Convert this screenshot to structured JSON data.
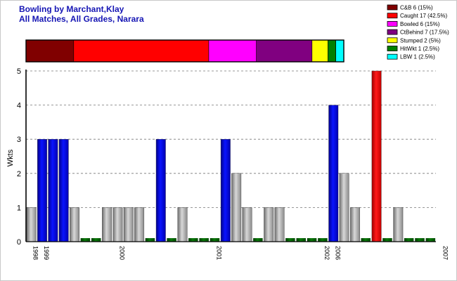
{
  "title_line1": "Bowling by Marchant,Klay",
  "title_line2": "All Matches, All Grades, Narara",
  "dismissals": [
    {
      "label": "C&B 6 (15%)",
      "count": 6,
      "color": "#800000"
    },
    {
      "label": "Caught 17 (42.5%)",
      "count": 17,
      "color": "#ff0000"
    },
    {
      "label": "Bowled 6 (15%)",
      "count": 6,
      "color": "#ff00ff"
    },
    {
      "label": "CtBehind 7 (17.5%)",
      "count": 7,
      "color": "#800080"
    },
    {
      "label": "Stumped 2 (5%)",
      "count": 2,
      "color": "#ffff00"
    },
    {
      "label": "HitWkt 1 (2.5%)",
      "count": 1,
      "color": "#008000"
    },
    {
      "label": "LBW 1 (2.5%)",
      "count": 1,
      "color": "#00ffff"
    }
  ],
  "chart_data": {
    "type": "bar",
    "title": "Bowling by Marchant,Klay",
    "subtitle": "All Matches, All Grades, Narara",
    "ylabel": "Wkts",
    "ylim": [
      0,
      5
    ],
    "yticks": [
      "0",
      "1",
      "2",
      "3",
      "4",
      "5"
    ],
    "grid": true,
    "legend": "top-right",
    "xtick_labels": [
      {
        "index": 0,
        "text": "1998"
      },
      {
        "index": 1,
        "text": "1999"
      },
      {
        "index": 8,
        "text": "2000"
      },
      {
        "index": 17,
        "text": "2001"
      },
      {
        "index": 27,
        "text": "2002"
      },
      {
        "index": 28,
        "text": "2006"
      },
      {
        "index": 38,
        "text": "2007"
      }
    ],
    "series_colors": {
      "grey": "#a0a0a0",
      "blue": "#0000dd",
      "red": "#ee0000",
      "green": "#006400"
    },
    "values": [
      1,
      3,
      3,
      3,
      1,
      0,
      0,
      1,
      1,
      1,
      1,
      0,
      3,
      0,
      1,
      0,
      0,
      0,
      3,
      2,
      1,
      0,
      1,
      1,
      0,
      0,
      0,
      0,
      4,
      2,
      1,
      0,
      5,
      0,
      1,
      0,
      0,
      0
    ],
    "colors": [
      "grey",
      "blue",
      "blue",
      "blue",
      "grey",
      "green",
      "green",
      "grey",
      "grey",
      "grey",
      "grey",
      "green",
      "blue",
      "green",
      "grey",
      "green",
      "green",
      "green",
      "blue",
      "grey",
      "grey",
      "green",
      "grey",
      "grey",
      "green",
      "green",
      "green",
      "green",
      "blue",
      "grey",
      "grey",
      "green",
      "red",
      "green",
      "grey",
      "green",
      "green",
      "green"
    ]
  }
}
